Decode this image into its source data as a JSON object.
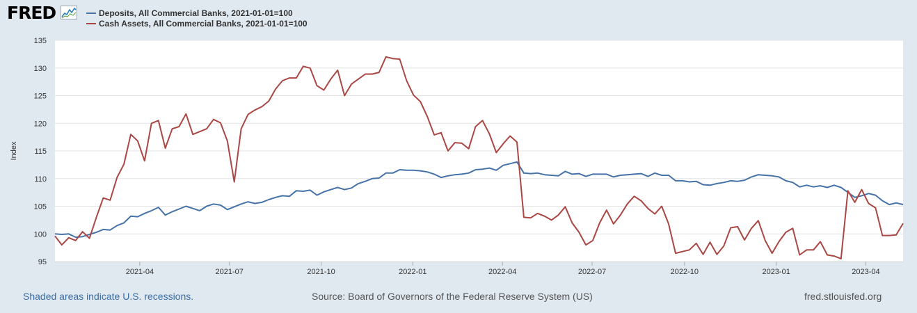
{
  "logo": {
    "text": "FRED",
    "icon": "fred-sparkline-icon"
  },
  "legend": [
    {
      "label": "Deposits, All Commercial Banks, 2021-01-01=100",
      "color": "#4572a7"
    },
    {
      "label": "Cash Assets, All Commercial Banks, 2021-01-01=100",
      "color": "#aa4643"
    }
  ],
  "chart_data": {
    "type": "line",
    "title": "",
    "xlabel": "",
    "ylabel": "Index",
    "ylim": [
      95,
      135
    ],
    "yticks": [
      95,
      100,
      105,
      110,
      115,
      120,
      125,
      130,
      135
    ],
    "x_start": "2021-01-06",
    "x_step": "weekly",
    "xticks": [
      "2021-04",
      "2021-07",
      "2021-10",
      "2022-01",
      "2022-04",
      "2022-07",
      "2022-10",
      "2023-01",
      "2023-04"
    ],
    "xtick_positions": [
      12.3,
      25.3,
      38.6,
      51.9,
      64.9,
      77.9,
      91.3,
      104.6,
      117.6
    ],
    "series": [
      {
        "name": "Deposits, All Commercial Banks, 2021-01-01=100",
        "color": "#4572a7",
        "values": [
          100.0,
          99.9,
          100.0,
          99.4,
          99.5,
          99.9,
          100.3,
          100.8,
          100.7,
          101.5,
          102.0,
          103.2,
          103.1,
          103.7,
          104.2,
          104.8,
          103.4,
          104.0,
          104.5,
          105.0,
          104.6,
          104.2,
          105.0,
          105.4,
          105.2,
          104.4,
          104.9,
          105.4,
          105.8,
          105.5,
          105.7,
          106.2,
          106.6,
          106.9,
          106.8,
          107.8,
          107.7,
          107.9,
          107.0,
          107.6,
          108.0,
          108.4,
          108.0,
          108.3,
          109.1,
          109.5,
          110.0,
          110.1,
          111.0,
          111.0,
          111.6,
          111.5,
          111.5,
          111.4,
          111.2,
          110.8,
          110.2,
          110.5,
          110.7,
          110.8,
          111.0,
          111.6,
          111.7,
          111.9,
          111.5,
          112.4,
          112.7,
          113.0,
          111.0,
          110.9,
          111.0,
          110.7,
          110.6,
          110.5,
          111.3,
          110.8,
          110.9,
          110.4,
          110.8,
          110.8,
          110.8,
          110.3,
          110.6,
          110.7,
          110.8,
          110.9,
          110.4,
          111.0,
          110.6,
          110.6,
          109.6,
          109.6,
          109.4,
          109.5,
          108.9,
          108.8,
          109.1,
          109.3,
          109.6,
          109.5,
          109.7,
          110.3,
          110.7,
          110.6,
          110.5,
          110.3,
          109.6,
          109.3,
          108.5,
          108.8,
          108.5,
          108.7,
          108.4,
          108.8,
          108.4,
          107.5,
          106.6,
          106.9,
          107.3,
          107.0,
          106.0,
          105.3,
          105.6,
          105.3
        ]
      },
      {
        "name": "Cash Assets, All Commercial Banks, 2021-01-01=100",
        "color": "#aa4643",
        "values": [
          99.6,
          98.0,
          99.3,
          98.8,
          100.4,
          99.2,
          103.0,
          106.5,
          106.1,
          110.2,
          112.6,
          118.0,
          116.8,
          113.2,
          120.0,
          120.5,
          115.5,
          119.0,
          119.4,
          121.7,
          118.0,
          118.5,
          119.0,
          120.7,
          120.1,
          116.8,
          109.4,
          119.0,
          121.6,
          122.4,
          123.0,
          124.0,
          126.2,
          127.7,
          128.2,
          128.2,
          130.3,
          130.0,
          126.8,
          126.0,
          128.0,
          129.6,
          125.0,
          127.1,
          128.0,
          128.9,
          128.9,
          129.2,
          132.0,
          131.7,
          131.6,
          127.7,
          125.1,
          123.9,
          121.2,
          117.9,
          118.3,
          115.0,
          116.5,
          116.4,
          115.4,
          119.4,
          120.5,
          118.1,
          114.7,
          116.3,
          117.7,
          116.6,
          103.0,
          102.9,
          103.7,
          103.2,
          102.5,
          103.4,
          104.9,
          102.0,
          100.3,
          98.0,
          98.8,
          102.0,
          104.3,
          101.8,
          103.4,
          105.4,
          106.8,
          106.0,
          104.6,
          103.6,
          105.0,
          101.8,
          96.5,
          96.8,
          97.1,
          98.3,
          96.3,
          98.5,
          96.3,
          97.8,
          101.1,
          101.3,
          98.9,
          101.0,
          102.4,
          98.8,
          96.5,
          98.6,
          100.3,
          101.0,
          96.2,
          97.1,
          97.1,
          98.6,
          96.2,
          96.0,
          95.5,
          107.8,
          105.7,
          108.0,
          105.5,
          104.7,
          99.7,
          99.7,
          99.8,
          101.9
        ]
      }
    ]
  },
  "footer": {
    "recession_note": "Shaded areas indicate U.S. recessions.",
    "source": "Source: Board of Governors of the Federal Reserve System (US)",
    "site": "fred.stlouisfed.org"
  }
}
